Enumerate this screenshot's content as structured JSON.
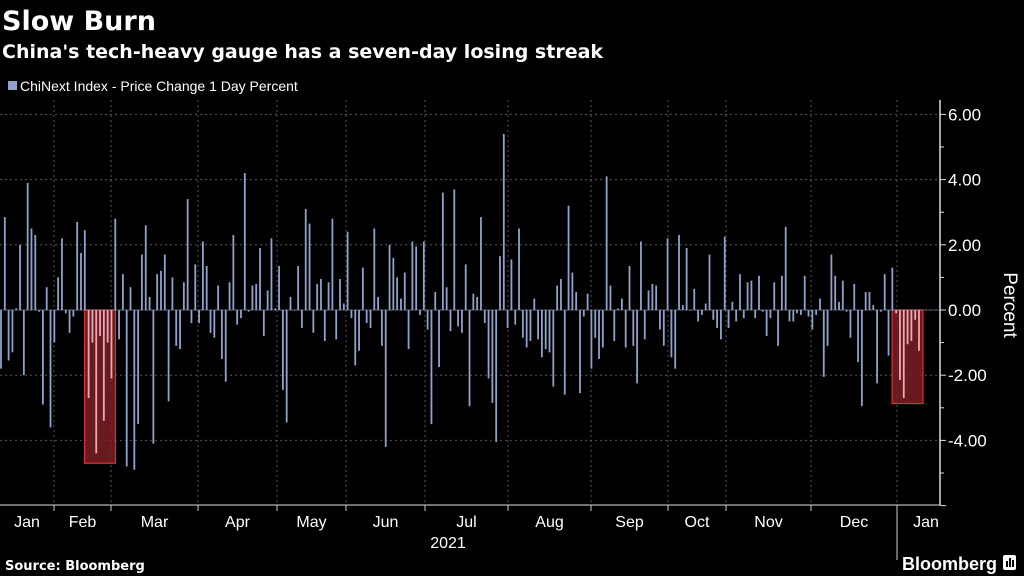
{
  "header": {
    "title": "Slow Burn",
    "subtitle": "China's tech-heavy gauge has a seven-day losing streak"
  },
  "footer": {
    "source": "Source: Bloomberg",
    "logo": "Bloomberg"
  },
  "colors": {
    "bar": "#8ea2cc",
    "highlight_fill": "#7a1e24",
    "highlight_stroke": "#e0303a",
    "background": "#000000"
  },
  "chart_data": {
    "type": "bar",
    "title": "Slow Burn",
    "subtitle": "China's tech-heavy gauge has a seven-day losing streak",
    "legend": {
      "label": "ChiNext Index - Price Change 1 Day Percent",
      "placement": "top-left"
    },
    "xlabel": "2021",
    "ylabel": "Percent",
    "ylim": [
      -6,
      6.2
    ],
    "y_ticks": [
      6,
      4,
      2,
      0,
      -2,
      -4
    ],
    "y_tick_labels": [
      "6.00",
      "4.00",
      "2.00",
      "0.00",
      "-2.00",
      "-4.00"
    ],
    "x_tick_labels": [
      "Jan",
      "Feb",
      "Mar",
      "Apr",
      "May",
      "Jun",
      "Jul",
      "Aug",
      "Sep",
      "Oct",
      "Nov",
      "Dec",
      "Jan"
    ],
    "grid": true,
    "highlight_streaks": [
      {
        "start_index": 23,
        "end_index": 29,
        "floor": -4.7
      },
      {
        "start_index": 235,
        "end_index": 241,
        "floor": -2.87
      }
    ],
    "values": [
      -1.8,
      2.85,
      -1.55,
      -1.3,
      0.05,
      2.0,
      -2.0,
      3.9,
      2.5,
      2.3,
      -0.05,
      -2.9,
      0.7,
      -3.6,
      -1.0,
      1.0,
      2.2,
      -0.1,
      -0.7,
      -0.2,
      2.7,
      1.75,
      2.45,
      -2.7,
      -1.0,
      -4.4,
      -0.8,
      -3.4,
      -1.0,
      -2.1,
      2.8,
      -0.9,
      1.1,
      -4.8,
      0.7,
      -4.9,
      -3.5,
      1.7,
      2.6,
      0.4,
      -4.1,
      1.1,
      1.2,
      1.7,
      -2.8,
      1.0,
      -1.1,
      -1.2,
      0.85,
      3.4,
      -0.4,
      1.4,
      -0.4,
      2.1,
      1.35,
      -0.7,
      -0.85,
      0.75,
      -1.5,
      -2.2,
      0.85,
      2.3,
      -0.45,
      -0.25,
      4.2,
      -0.05,
      0.75,
      0.8,
      1.9,
      -0.8,
      0.6,
      2.2,
      0.05,
      1.35,
      -2.45,
      -3.45,
      0.4,
      0,
      1.35,
      -0.55,
      3.1,
      2.65,
      -0.7,
      0.8,
      0.95,
      -0.95,
      0.85,
      2.8,
      -0.9,
      0.95,
      0.2,
      2.4,
      -0.25,
      -1.7,
      -1.25,
      1.3,
      -0.4,
      -0.55,
      2.5,
      0.4,
      -1.1,
      -4.2,
      2.0,
      1.6,
      1.0,
      0.35,
      1.15,
      -1.2,
      2.1,
      1.95,
      -0.15,
      2.1,
      -0.6,
      -3.5,
      0.55,
      -1.75,
      3.6,
      0.7,
      -0.65,
      3.7,
      -0.5,
      -0.7,
      1.4,
      -2.95,
      0.5,
      0.4,
      2.85,
      -0.4,
      -2.1,
      -2.85,
      -4.05,
      1.65,
      5.4,
      -0.55,
      1.55,
      -0.45,
      2.5,
      -0.85,
      -1.15,
      -0.95,
      0.35,
      -0.9,
      -1.45,
      -1.2,
      -1.3,
      -2.35,
      0.75,
      0.95,
      -2.6,
      3.2,
      1.15,
      0.55,
      -2.55,
      -0.2,
      0.5,
      -1.8,
      -0.85,
      -1.5,
      -1.15,
      4.1,
      0.75,
      -0.95,
      0.05,
      0.35,
      -1.15,
      1.35,
      -1.1,
      -2.25,
      2.1,
      -0.9,
      0.6,
      0.8,
      0.75,
      -0.6,
      -1.1,
      2.2,
      -1.45,
      -1.8,
      2.3,
      0.15,
      1.9,
      0,
      0.65,
      -0.35,
      -0.15,
      0.2,
      1.7,
      -0.3,
      -0.55,
      -0.9,
      2.25,
      -0.55,
      0.25,
      -0.35,
      1.1,
      -0.25,
      0.85,
      0.9,
      -0.25,
      1.05,
      -0.05,
      -0.8,
      -0.25,
      0.85,
      -1.1,
      1.05,
      2.55,
      -0.35,
      -0.35,
      -0.1,
      -0.15,
      1.05,
      -0.2,
      -0.6,
      -0.15,
      0.35,
      -2.05,
      -1.1,
      1.7,
      1.05,
      0.25,
      0.9,
      -0.05,
      -0.85,
      0.8,
      -1.6,
      -2.95,
      0.55,
      0.55,
      0.15,
      -2.25,
      -0.05,
      1.1,
      -1.4,
      1.3,
      -0.1,
      -2.15,
      -2.7,
      -1.05,
      -0.95,
      -0.3,
      -1.25
    ]
  }
}
